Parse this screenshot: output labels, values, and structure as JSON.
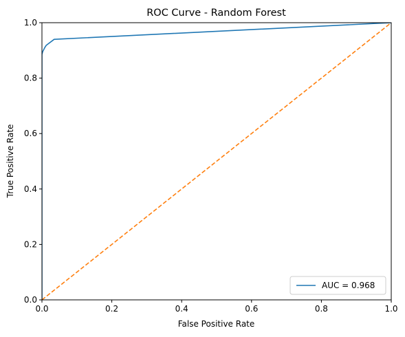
{
  "chart_data": {
    "type": "line",
    "title": "ROC Curve - Random Forest",
    "xlabel": "False Positive Rate",
    "ylabel": "True Positive Rate",
    "xlim": [
      0.0,
      1.0
    ],
    "ylim": [
      0.0,
      1.0
    ],
    "x_ticks": [
      "0.0",
      "0.2",
      "0.4",
      "0.6",
      "0.8",
      "1.0"
    ],
    "y_ticks": [
      "0.0",
      "0.2",
      "0.4",
      "0.6",
      "0.8",
      "1.0"
    ],
    "grid": false,
    "legend_position": "bottom-right",
    "series": [
      {
        "name": "AUC = 0.968",
        "color": "#1f77b4",
        "style": "solid",
        "x": [
          0.0,
          0.0,
          0.002,
          0.004,
          0.008,
          0.012,
          0.035,
          1.0
        ],
        "y": [
          0.0,
          0.885,
          0.895,
          0.9,
          0.91,
          0.918,
          0.94,
          1.0
        ]
      },
      {
        "color": "#ff7f0e",
        "style": "dashed",
        "x": [
          0.0,
          1.0
        ],
        "y": [
          0.0,
          1.0
        ]
      }
    ]
  }
}
